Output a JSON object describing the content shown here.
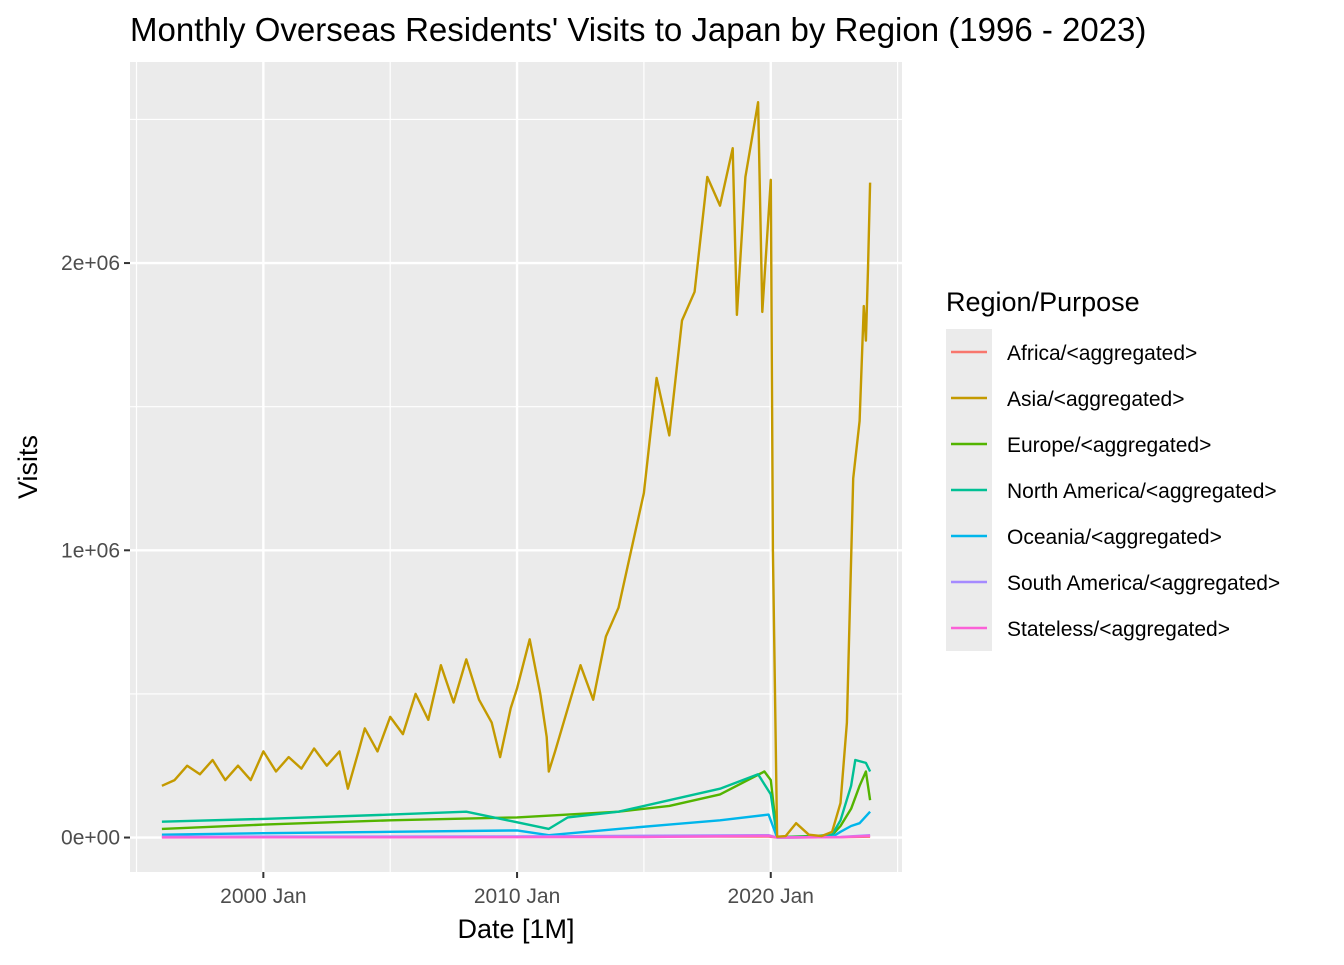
{
  "chart_data": {
    "type": "line",
    "title": "Monthly Overseas Residents' Visits to Japan by Region (1996 - 2023)",
    "xlabel": "Date [1M]",
    "ylabel": "Visits",
    "x_range": [
      "1996-01",
      "2023-12"
    ],
    "ylim": [
      -120000,
      2700000
    ],
    "x_ticks": [
      {
        "date": "2000-01",
        "label": "2000 Jan"
      },
      {
        "date": "2010-01",
        "label": "2010 Jan"
      },
      {
        "date": "2020-01",
        "label": "2020 Jan"
      }
    ],
    "y_ticks": [
      {
        "value": 0,
        "label": "0e+00"
      },
      {
        "value": 1000000,
        "label": "1e+06"
      },
      {
        "value": 2000000,
        "label": "2e+06"
      }
    ],
    "grid": true,
    "legend": {
      "title": "Region/Purpose",
      "position": "right"
    },
    "series": [
      {
        "name": "Africa/<aggregated>",
        "color": "#F8766D",
        "points": [
          [
            "1996-01",
            2000
          ],
          [
            "2019-12",
            3500
          ],
          [
            "2020-04",
            0
          ],
          [
            "2022-10",
            1000
          ],
          [
            "2023-12",
            3000
          ]
        ]
      },
      {
        "name": "Asia/<aggregated>",
        "color": "#C49A00",
        "points": [
          [
            "1996-01",
            180000
          ],
          [
            "1996-07",
            200000
          ],
          [
            "1997-01",
            250000
          ],
          [
            "1997-07",
            220000
          ],
          [
            "1998-01",
            270000
          ],
          [
            "1998-07",
            200000
          ],
          [
            "1999-01",
            250000
          ],
          [
            "1999-07",
            200000
          ],
          [
            "2000-01",
            300000
          ],
          [
            "2000-07",
            230000
          ],
          [
            "2001-01",
            280000
          ],
          [
            "2001-07",
            240000
          ],
          [
            "2002-01",
            310000
          ],
          [
            "2002-07",
            250000
          ],
          [
            "2003-01",
            300000
          ],
          [
            "2003-05",
            170000
          ],
          [
            "2003-10",
            300000
          ],
          [
            "2004-01",
            380000
          ],
          [
            "2004-07",
            300000
          ],
          [
            "2005-01",
            420000
          ],
          [
            "2005-07",
            360000
          ],
          [
            "2006-01",
            500000
          ],
          [
            "2006-07",
            410000
          ],
          [
            "2007-01",
            600000
          ],
          [
            "2007-07",
            470000
          ],
          [
            "2008-01",
            620000
          ],
          [
            "2008-07",
            480000
          ],
          [
            "2009-01",
            400000
          ],
          [
            "2009-05",
            280000
          ],
          [
            "2009-10",
            450000
          ],
          [
            "2010-01",
            520000
          ],
          [
            "2010-07",
            690000
          ],
          [
            "2010-12",
            500000
          ],
          [
            "2011-03",
            350000
          ],
          [
            "2011-04",
            230000
          ],
          [
            "2011-07",
            300000
          ],
          [
            "2012-01",
            450000
          ],
          [
            "2012-07",
            600000
          ],
          [
            "2013-01",
            480000
          ],
          [
            "2013-07",
            700000
          ],
          [
            "2014-01",
            800000
          ],
          [
            "2014-07",
            1000000
          ],
          [
            "2015-01",
            1200000
          ],
          [
            "2015-07",
            1600000
          ],
          [
            "2016-01",
            1400000
          ],
          [
            "2016-07",
            1800000
          ],
          [
            "2017-01",
            1900000
          ],
          [
            "2017-07",
            2300000
          ],
          [
            "2018-01",
            2200000
          ],
          [
            "2018-07",
            2400000
          ],
          [
            "2018-09",
            1820000
          ],
          [
            "2019-01",
            2300000
          ],
          [
            "2019-07",
            2560000
          ],
          [
            "2019-09",
            1830000
          ],
          [
            "2020-01",
            2290000
          ],
          [
            "2020-02",
            1000000
          ],
          [
            "2020-04",
            3000
          ],
          [
            "2020-08",
            5000
          ],
          [
            "2021-01",
            50000
          ],
          [
            "2021-07",
            10000
          ],
          [
            "2022-01",
            5000
          ],
          [
            "2022-06",
            20000
          ],
          [
            "2022-10",
            120000
          ],
          [
            "2023-01",
            400000
          ],
          [
            "2023-04",
            1250000
          ],
          [
            "2023-07",
            1450000
          ],
          [
            "2023-09",
            1850000
          ],
          [
            "2023-10",
            1730000
          ],
          [
            "2023-11",
            1980000
          ],
          [
            "2023-12",
            2280000
          ]
        ]
      },
      {
        "name": "Europe/<aggregated>",
        "color": "#53B400",
        "points": [
          [
            "1996-01",
            30000
          ],
          [
            "2000-01",
            45000
          ],
          [
            "2005-01",
            60000
          ],
          [
            "2010-01",
            70000
          ],
          [
            "2014-01",
            90000
          ],
          [
            "2016-01",
            110000
          ],
          [
            "2018-01",
            150000
          ],
          [
            "2019-10",
            230000
          ],
          [
            "2020-01",
            200000
          ],
          [
            "2020-04",
            1000
          ],
          [
            "2021-07",
            5000
          ],
          [
            "2022-06",
            8000
          ],
          [
            "2022-10",
            40000
          ],
          [
            "2023-03",
            100000
          ],
          [
            "2023-07",
            180000
          ],
          [
            "2023-10",
            230000
          ],
          [
            "2023-12",
            130000
          ]
        ]
      },
      {
        "name": "North America/<aggregated>",
        "color": "#00C094",
        "points": [
          [
            "1996-01",
            55000
          ],
          [
            "2000-01",
            65000
          ],
          [
            "2005-01",
            80000
          ],
          [
            "2008-01",
            90000
          ],
          [
            "2011-04",
            30000
          ],
          [
            "2012-01",
            70000
          ],
          [
            "2014-01",
            90000
          ],
          [
            "2016-01",
            130000
          ],
          [
            "2018-01",
            170000
          ],
          [
            "2019-07",
            220000
          ],
          [
            "2020-01",
            150000
          ],
          [
            "2020-04",
            1000
          ],
          [
            "2021-07",
            3000
          ],
          [
            "2022-06",
            10000
          ],
          [
            "2022-10",
            60000
          ],
          [
            "2023-03",
            180000
          ],
          [
            "2023-05",
            270000
          ],
          [
            "2023-10",
            260000
          ],
          [
            "2023-12",
            230000
          ]
        ]
      },
      {
        "name": "Oceania/<aggregated>",
        "color": "#00B6EB",
        "points": [
          [
            "1996-01",
            10000
          ],
          [
            "2000-01",
            15000
          ],
          [
            "2005-01",
            20000
          ],
          [
            "2010-01",
            25000
          ],
          [
            "2011-04",
            8000
          ],
          [
            "2014-01",
            30000
          ],
          [
            "2016-01",
            45000
          ],
          [
            "2018-01",
            60000
          ],
          [
            "2019-12",
            80000
          ],
          [
            "2020-04",
            0
          ],
          [
            "2022-06",
            2000
          ],
          [
            "2022-10",
            20000
          ],
          [
            "2023-03",
            40000
          ],
          [
            "2023-07",
            50000
          ],
          [
            "2023-12",
            90000
          ]
        ]
      },
      {
        "name": "South America/<aggregated>",
        "color": "#A58AFF",
        "points": [
          [
            "1996-01",
            3000
          ],
          [
            "2010-01",
            4000
          ],
          [
            "2019-12",
            8000
          ],
          [
            "2020-04",
            0
          ],
          [
            "2022-10",
            2000
          ],
          [
            "2023-12",
            8000
          ]
        ]
      },
      {
        "name": "Stateless/<aggregated>",
        "color": "#FB61D7",
        "points": [
          [
            "1996-01",
            500
          ],
          [
            "2005-01",
            800
          ],
          [
            "2015-01",
            2000
          ],
          [
            "2019-12",
            6000
          ],
          [
            "2020-04",
            0
          ],
          [
            "2022-10",
            1000
          ],
          [
            "2023-12",
            6000
          ]
        ]
      }
    ]
  }
}
